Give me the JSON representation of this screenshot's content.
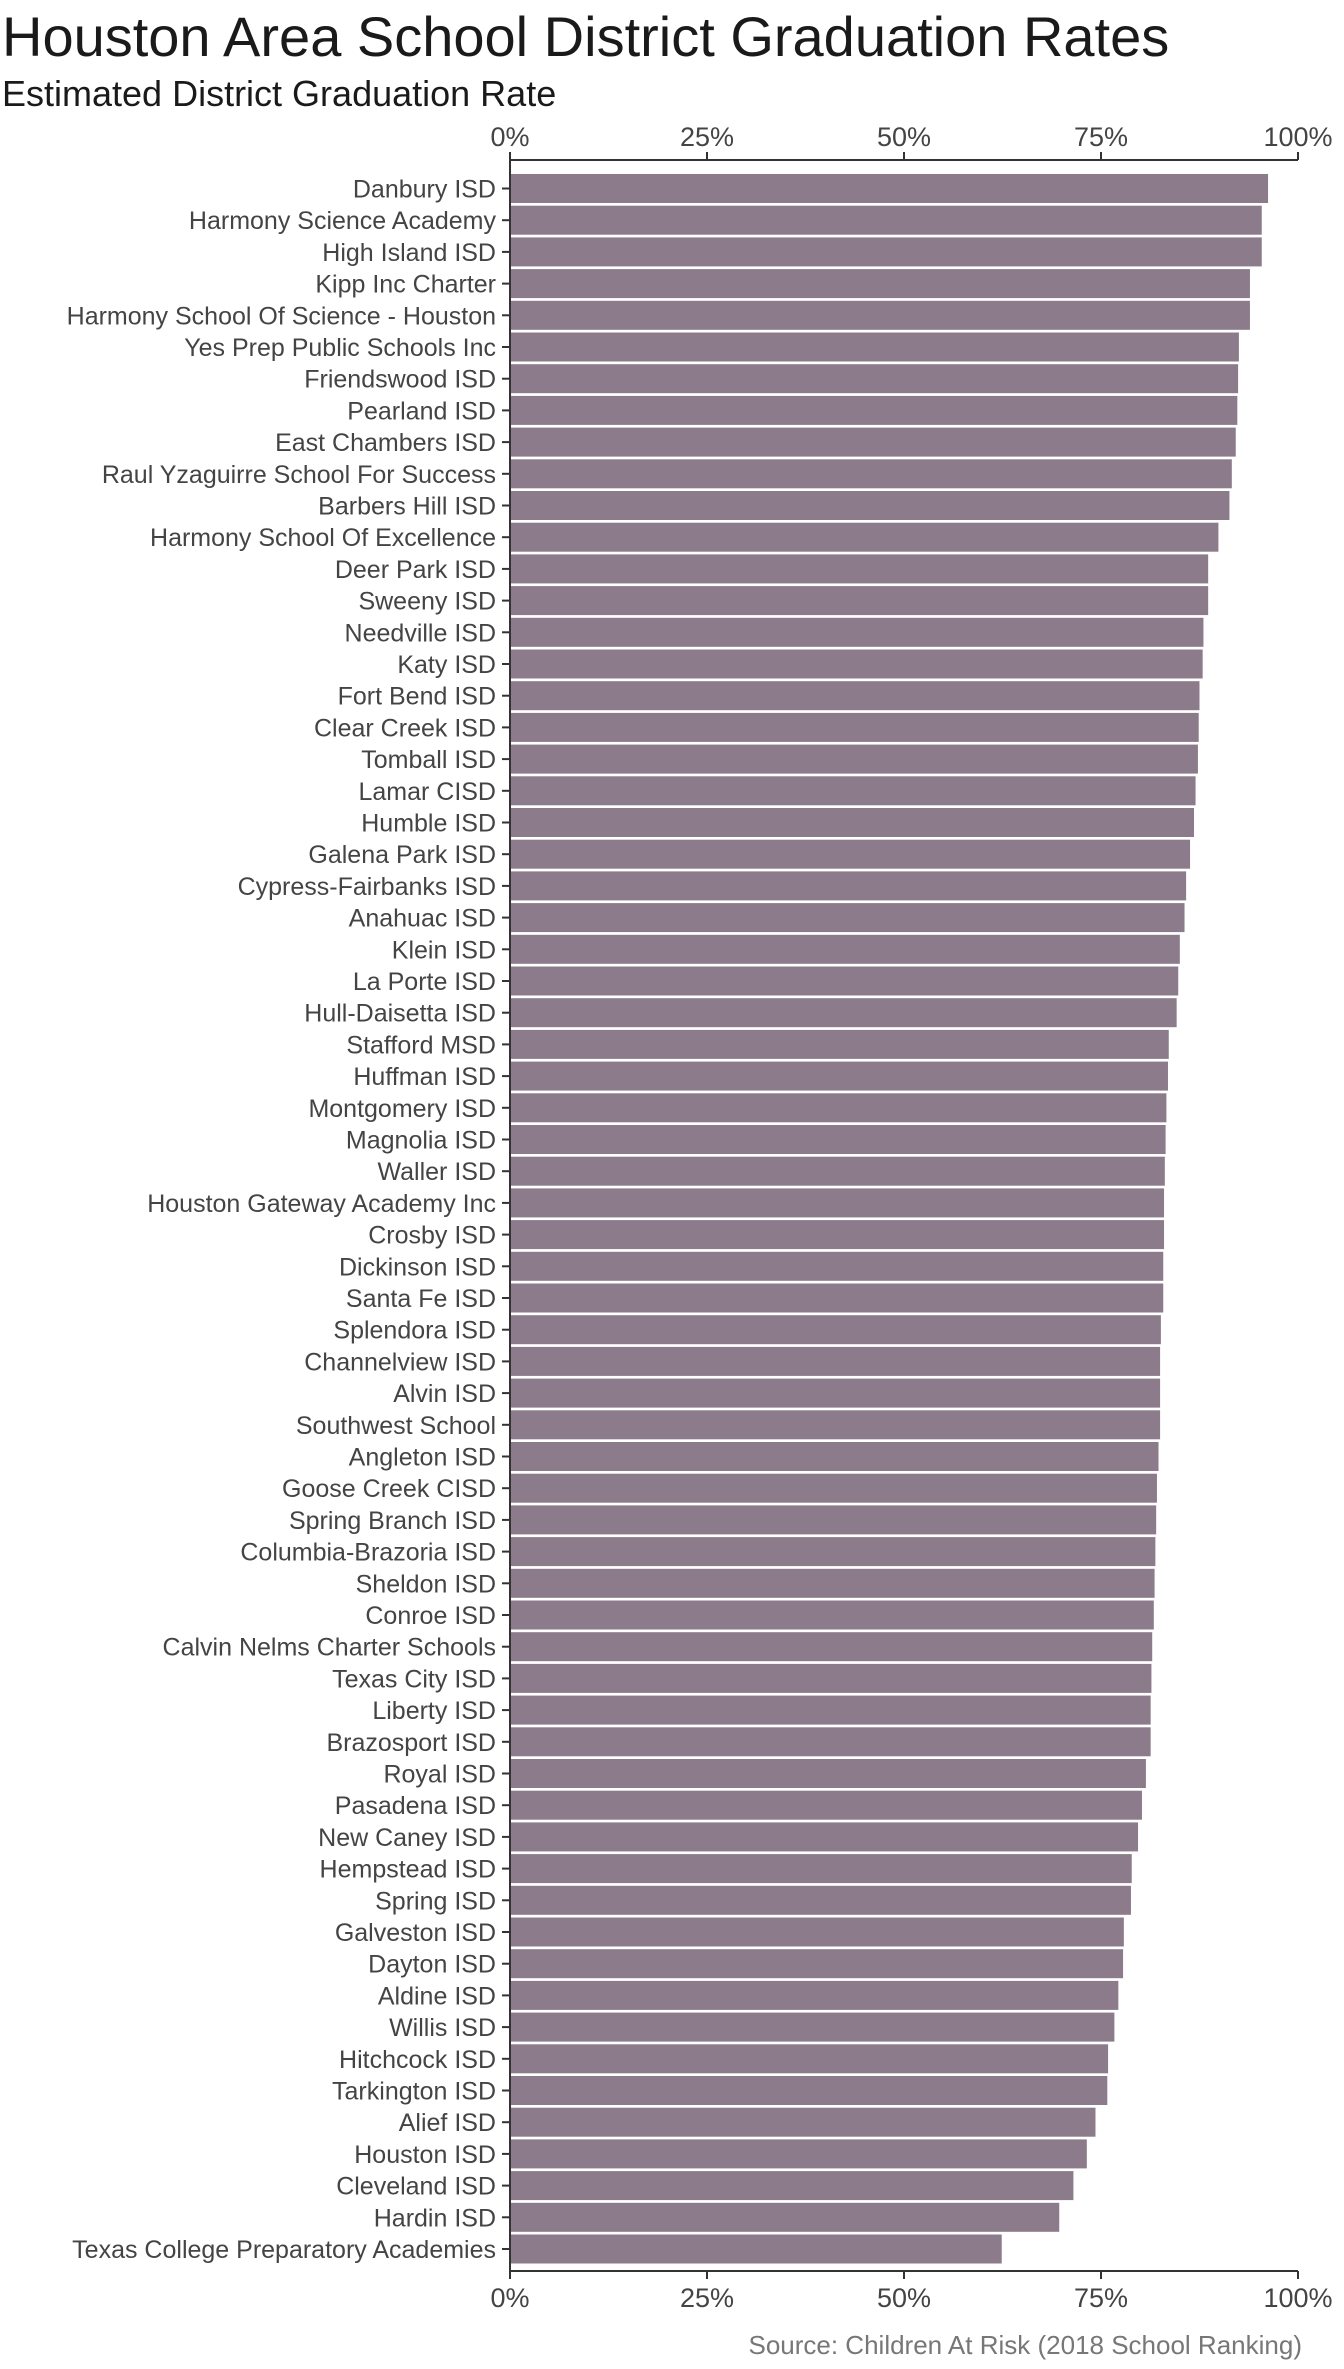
{
  "chart_data": {
    "type": "bar",
    "orientation": "horizontal",
    "title": "Houston Area School District Graduation Rates",
    "subtitle": "Estimated District Graduation Rate",
    "caption": "Source: Children At Risk (2018 School Ranking)",
    "xlim": [
      0,
      1
    ],
    "x_ticks": [
      "0%",
      "25%",
      "50%",
      "75%",
      "100%"
    ],
    "x_axis_positions": [
      "top",
      "bottom"
    ],
    "grid": false,
    "bar_color": "#8c7b8b",
    "categories": [
      "Danbury ISD",
      "Harmony Science Academy",
      "High Island ISD",
      "Kipp Inc Charter",
      "Harmony School Of Science - Houston",
      "Yes Prep Public Schools Inc",
      "Friendswood ISD",
      "Pearland ISD",
      "East Chambers ISD",
      "Raul Yzaguirre School For Success",
      "Barbers Hill ISD",
      "Harmony School Of Excellence",
      "Deer Park ISD",
      "Sweeny ISD",
      "Needville ISD",
      "Katy ISD",
      "Fort Bend ISD",
      "Clear Creek ISD",
      "Tomball ISD",
      "Lamar CISD",
      "Humble ISD",
      "Galena Park ISD",
      "Cypress-Fairbanks ISD",
      "Anahuac ISD",
      "Klein ISD",
      "La Porte ISD",
      "Hull-Daisetta ISD",
      "Stafford MSD",
      "Huffman ISD",
      "Montgomery ISD",
      "Magnolia ISD",
      "Waller ISD",
      "Houston Gateway Academy Inc",
      "Crosby ISD",
      "Dickinson ISD",
      "Santa Fe ISD",
      "Splendora ISD",
      "Channelview ISD",
      "Alvin ISD",
      "Southwest School",
      "Angleton ISD",
      "Goose Creek CISD",
      "Spring Branch ISD",
      "Columbia-Brazoria ISD",
      "Sheldon ISD",
      "Conroe ISD",
      "Calvin Nelms Charter Schools",
      "Texas City ISD",
      "Liberty ISD",
      "Brazosport ISD",
      "Royal ISD",
      "Pasadena ISD",
      "New Caney ISD",
      "Hempstead ISD",
      "Spring ISD",
      "Galveston ISD",
      "Dayton ISD",
      "Aldine ISD",
      "Willis ISD",
      "Hitchcock ISD",
      "Tarkington ISD",
      "Alief ISD",
      "Houston ISD",
      "Cleveland ISD",
      "Hardin ISD",
      "Texas College Preparatory Academies"
    ],
    "values": [
      0.962,
      0.954,
      0.954,
      0.939,
      0.939,
      0.925,
      0.924,
      0.923,
      0.921,
      0.916,
      0.913,
      0.899,
      0.886,
      0.886,
      0.88,
      0.879,
      0.875,
      0.874,
      0.873,
      0.87,
      0.868,
      0.863,
      0.858,
      0.856,
      0.85,
      0.848,
      0.846,
      0.836,
      0.835,
      0.833,
      0.832,
      0.831,
      0.83,
      0.83,
      0.829,
      0.829,
      0.826,
      0.825,
      0.825,
      0.825,
      0.823,
      0.821,
      0.82,
      0.819,
      0.818,
      0.817,
      0.815,
      0.814,
      0.813,
      0.813,
      0.807,
      0.802,
      0.797,
      0.789,
      0.788,
      0.779,
      0.778,
      0.772,
      0.767,
      0.759,
      0.758,
      0.743,
      0.732,
      0.715,
      0.697,
      0.624
    ]
  }
}
